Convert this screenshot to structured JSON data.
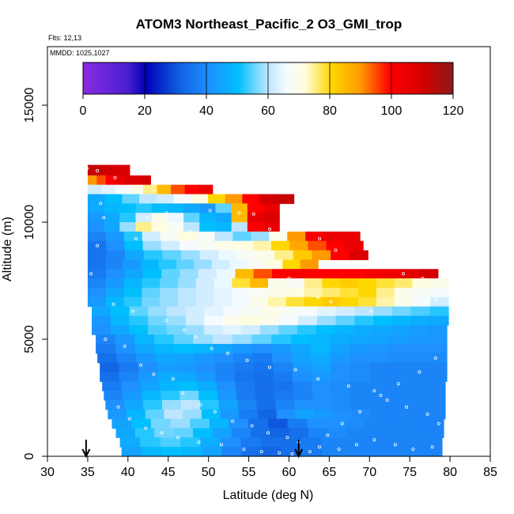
{
  "chart_data": {
    "type": "heatmap",
    "title": "ATOM3 Northeast_Pacific_2 O3_GMI_trop",
    "flights_label": "Flts: 12,13",
    "dates_label": "MMDD: 1025,1027",
    "xlabel": "Latitude (deg N)",
    "ylabel": "Altitude (m)",
    "xlim": [
      30,
      85
    ],
    "ylim": [
      0,
      17500
    ],
    "xticks": [
      "30",
      "35",
      "40",
      "45",
      "50",
      "55",
      "60",
      "65",
      "70",
      "75",
      "80",
      "85"
    ],
    "yticks": [
      "0",
      "5000",
      "10000",
      "15000"
    ],
    "colorbar": {
      "range": [
        0,
        120
      ],
      "ticks": [
        "0",
        "20",
        "40",
        "60",
        "80",
        "100",
        "120"
      ]
    },
    "arrows_latitude": [
      34.8,
      61.2
    ],
    "colors": {
      "low": "#8a2be2",
      "mid": "#1e90ff",
      "light": "#e0f0ff",
      "high_yellow": "#ffd700",
      "high_red": "#ff0000",
      "max": "#8b1a1a"
    },
    "layers": [
      {
        "alt_bottom": 12000,
        "alt_top": 12450,
        "lat_start": 35.0,
        "lat_end": 40.2,
        "values": [
          112,
          112,
          111,
          110,
          109,
          108
        ]
      },
      {
        "alt_bottom": 11600,
        "alt_top": 12000,
        "lat_start": 35.0,
        "lat_end": 42.8,
        "values": [
          90,
          95,
          100,
          105,
          108,
          108,
          110
        ]
      },
      {
        "alt_bottom": 11200,
        "alt_top": 11600,
        "lat_start": 35.0,
        "lat_end": 50.5,
        "values": [
          62,
          64,
          66,
          70,
          75,
          85,
          95,
          100,
          105
        ]
      },
      {
        "alt_bottom": 10800,
        "alt_top": 11200,
        "lat_start": 35.0,
        "lat_end": 60.6,
        "values": [
          45,
          50,
          55,
          60,
          62,
          66,
          72,
          80,
          90,
          100,
          110,
          112
        ]
      },
      {
        "alt_bottom": 10400,
        "alt_top": 10800,
        "lat_start": 35.0,
        "lat_end": 58.8,
        "values": [
          45,
          48,
          50,
          52,
          50,
          48,
          45,
          42,
          55,
          85,
          100,
          105
        ]
      },
      {
        "alt_bottom": 10000,
        "alt_top": 10400,
        "lat_start": 35.0,
        "lat_end": 58.8,
        "values": [
          42,
          45,
          52,
          62,
          70,
          65,
          55,
          48,
          45,
          85,
          105,
          108
        ]
      },
      {
        "alt_bottom": 9600,
        "alt_top": 10000,
        "lat_start": 35.0,
        "lat_end": 58.8,
        "values": [
          40,
          45,
          58,
          75,
          72,
          68,
          60,
          50,
          48,
          60,
          100,
          105
        ]
      },
      {
        "alt_bottom": 9200,
        "alt_top": 9600,
        "lat_start": 35.0,
        "lat_end": 68.8,
        "values": [
          38,
          42,
          52,
          62,
          68,
          72,
          68,
          60,
          55,
          58,
          70,
          90,
          102,
          105,
          105
        ]
      },
      {
        "alt_bottom": 8800,
        "alt_top": 9200,
        "lat_start": 35.0,
        "lat_end": 69.2,
        "values": [
          35,
          40,
          50,
          58,
          62,
          66,
          68,
          70,
          72,
          74,
          80,
          88,
          95,
          100,
          105
        ]
      },
      {
        "alt_bottom": 8400,
        "alt_top": 8800,
        "lat_start": 35.0,
        "lat_end": 69.8,
        "values": [
          35,
          38,
          45,
          52,
          55,
          58,
          62,
          65,
          68,
          70,
          75,
          82,
          90,
          100,
          108
        ]
      },
      {
        "alt_bottom": 8000,
        "alt_top": 8400,
        "lat_start": 35.0,
        "lat_end": 63.6,
        "values": [
          35,
          38,
          42,
          48,
          52,
          55,
          58,
          62,
          65,
          68,
          72,
          80,
          90
        ]
      },
      {
        "alt_bottom": 7600,
        "alt_top": 8000,
        "lat_start": 35.0,
        "lat_end": 78.5,
        "values": [
          36,
          40,
          45,
          50,
          55,
          58,
          62,
          65,
          85,
          95,
          100,
          102,
          100,
          100,
          100,
          102,
          104,
          106,
          110
        ]
      },
      {
        "alt_bottom": 7200,
        "alt_top": 7600,
        "lat_start": 35.0,
        "lat_end": 79.8,
        "values": [
          38,
          42,
          48,
          52,
          55,
          58,
          62,
          65,
          78,
          85,
          70,
          68,
          75,
          80,
          82,
          80,
          78,
          76,
          72,
          70
        ]
      },
      {
        "alt_bottom": 6800,
        "alt_top": 7200,
        "lat_start": 35.0,
        "lat_end": 79.8,
        "values": [
          40,
          45,
          50,
          55,
          58,
          60,
          62,
          64,
          66,
          68,
          70,
          72,
          74,
          76,
          78,
          80,
          75,
          70,
          68,
          66
        ]
      },
      {
        "alt_bottom": 6400,
        "alt_top": 6800,
        "lat_start": 35.0,
        "lat_end": 79.8,
        "values": [
          42,
          48,
          52,
          56,
          58,
          60,
          62,
          64,
          66,
          70,
          74,
          78,
          80,
          82,
          80,
          78,
          74,
          70,
          66,
          62
        ]
      },
      {
        "alt_bottom": 6000,
        "alt_top": 6400,
        "lat_start": 35.5,
        "lat_end": 79.8,
        "values": [
          45,
          50,
          55,
          58,
          60,
          62,
          64,
          66,
          68,
          70,
          68,
          66,
          64,
          62,
          60,
          58,
          56,
          54,
          52
        ]
      },
      {
        "alt_bottom": 5600,
        "alt_top": 6000,
        "lat_start": 35.5,
        "lat_end": 79.8,
        "values": [
          42,
          48,
          52,
          56,
          58,
          62,
          66,
          70,
          72,
          70,
          66,
          62,
          58,
          55,
          52,
          50,
          48,
          46,
          45
        ]
      },
      {
        "alt_bottom": 5200,
        "alt_top": 5600,
        "lat_start": 35.5,
        "lat_end": 79.6,
        "values": [
          40,
          45,
          50,
          54,
          56,
          58,
          62,
          64,
          62,
          58,
          55,
          52,
          50,
          48,
          46,
          45,
          44,
          43,
          42
        ]
      },
      {
        "alt_bottom": 4800,
        "alt_top": 5200,
        "lat_start": 36.0,
        "lat_end": 79.6,
        "values": [
          38,
          42,
          48,
          52,
          55,
          58,
          60,
          58,
          55,
          52,
          50,
          48,
          46,
          45,
          44,
          43,
          42,
          41
        ]
      },
      {
        "alt_bottom": 4400,
        "alt_top": 4800,
        "lat_start": 36.0,
        "lat_end": 79.6,
        "values": [
          36,
          40,
          45,
          48,
          50,
          48,
          45,
          42,
          40,
          42,
          45,
          48,
          44,
          42,
          41,
          40,
          40,
          40
        ]
      },
      {
        "alt_bottom": 4000,
        "alt_top": 4400,
        "lat_start": 36.2,
        "lat_end": 79.6,
        "values": [
          34,
          38,
          42,
          45,
          44,
          42,
          40,
          38,
          36,
          40,
          44,
          46,
          42,
          40,
          40,
          39,
          39,
          39
        ]
      },
      {
        "alt_bottom": 3600,
        "alt_top": 4000,
        "lat_start": 36.5,
        "lat_end": 79.6,
        "values": [
          32,
          36,
          40,
          43,
          42,
          40,
          38,
          36,
          35,
          38,
          42,
          44,
          40,
          39,
          38,
          38,
          38,
          38
        ]
      },
      {
        "alt_bottom": 3200,
        "alt_top": 3600,
        "lat_start": 36.5,
        "lat_end": 79.6,
        "values": [
          34,
          38,
          42,
          46,
          45,
          42,
          38,
          35,
          34,
          36,
          40,
          42,
          40,
          39,
          38,
          38,
          38,
          38
        ]
      },
      {
        "alt_bottom": 2800,
        "alt_top": 3200,
        "lat_start": 36.8,
        "lat_end": 79.4,
        "values": [
          36,
          40,
          44,
          48,
          50,
          46,
          40,
          36,
          34,
          35,
          38,
          40,
          39,
          38,
          38,
          38,
          38,
          38
        ]
      },
      {
        "alt_bottom": 2400,
        "alt_top": 2800,
        "lat_start": 37.0,
        "lat_end": 79.4,
        "values": [
          38,
          42,
          48,
          52,
          56,
          50,
          42,
          36,
          34,
          36,
          38,
          40,
          39,
          38,
          38,
          38,
          38,
          38
        ]
      },
      {
        "alt_bottom": 2000,
        "alt_top": 2400,
        "lat_start": 37.2,
        "lat_end": 79.4,
        "values": [
          40,
          45,
          52,
          58,
          60,
          52,
          44,
          38,
          34,
          38,
          40,
          40,
          39,
          38,
          38,
          38,
          38,
          38
        ]
      },
      {
        "alt_bottom": 1600,
        "alt_top": 2000,
        "lat_start": 37.5,
        "lat_end": 79.4,
        "values": [
          42,
          48,
          55,
          60,
          58,
          50,
          42,
          36,
          32,
          40,
          44,
          42,
          40,
          39,
          38,
          38,
          38,
          38
        ]
      },
      {
        "alt_bottom": 1200,
        "alt_top": 1600,
        "lat_start": 38.0,
        "lat_end": 79.2,
        "values": [
          44,
          50,
          56,
          58,
          54,
          48,
          40,
          34,
          30,
          36,
          40,
          40,
          39,
          38,
          38,
          38,
          38
        ]
      },
      {
        "alt_bottom": 800,
        "alt_top": 1200,
        "lat_start": 38.5,
        "lat_end": 79.2,
        "values": [
          45,
          52,
          56,
          55,
          50,
          44,
          38,
          34,
          32,
          34,
          38,
          39,
          38,
          38,
          38,
          38,
          38
        ]
      },
      {
        "alt_bottom": 400,
        "alt_top": 800,
        "lat_start": 39.0,
        "lat_end": 79.0,
        "values": [
          46,
          52,
          54,
          52,
          46,
          40,
          36,
          34,
          34,
          36,
          38,
          38,
          38,
          38,
          38,
          38
        ]
      },
      {
        "alt_bottom": 0,
        "alt_top": 400,
        "lat_start": 39.2,
        "lat_end": 79.0,
        "values": [
          44,
          48,
          50,
          48,
          44,
          38,
          34,
          32,
          34,
          36,
          38,
          38,
          38,
          38,
          38,
          38
        ]
      }
    ],
    "samples": [
      [
        34.9,
        12300
      ],
      [
        36.2,
        12200
      ],
      [
        38.4,
        11900
      ],
      [
        36.6,
        10800
      ],
      [
        37.0,
        10200
      ],
      [
        42.4,
        10200
      ],
      [
        44.8,
        10400
      ],
      [
        50.2,
        10500
      ],
      [
        53.8,
        10400
      ],
      [
        55.6,
        10350
      ],
      [
        57.6,
        9700
      ],
      [
        63.8,
        9300
      ],
      [
        65.8,
        8800
      ],
      [
        71.0,
        8300
      ],
      [
        74.2,
        7800
      ],
      [
        76.6,
        7600
      ],
      [
        36.2,
        9000
      ],
      [
        41.0,
        9300
      ],
      [
        44.2,
        9900
      ],
      [
        47.8,
        9600
      ],
      [
        53.6,
        8800
      ],
      [
        60.0,
        7600
      ],
      [
        61.3,
        7200
      ],
      [
        63.6,
        6800
      ],
      [
        65.2,
        6600
      ],
      [
        70.2,
        6200
      ],
      [
        75.8,
        6500
      ],
      [
        78.2,
        6700
      ],
      [
        35.4,
        7800
      ],
      [
        38.2,
        6500
      ],
      [
        40.6,
        6200
      ],
      [
        44.8,
        5800
      ],
      [
        47.0,
        5400
      ],
      [
        48.4,
        5100
      ],
      [
        50.4,
        4600
      ],
      [
        52.4,
        4400
      ],
      [
        54.8,
        4100
      ],
      [
        57.6,
        3800
      ],
      [
        60.8,
        3700
      ],
      [
        63.6,
        3300
      ],
      [
        67.4,
        3000
      ],
      [
        70.6,
        2800
      ],
      [
        72.2,
        2400
      ],
      [
        74.6,
        2100
      ],
      [
        77.2,
        1800
      ],
      [
        78.6,
        1400
      ],
      [
        37.2,
        5000
      ],
      [
        39.6,
        4700
      ],
      [
        41.6,
        3900
      ],
      [
        43.2,
        3500
      ],
      [
        45.6,
        3300
      ],
      [
        46.8,
        2700
      ],
      [
        49.0,
        2200
      ],
      [
        50.8,
        1900
      ],
      [
        53.0,
        1500
      ],
      [
        55.4,
        1300
      ],
      [
        57.4,
        1000
      ],
      [
        59.8,
        800
      ],
      [
        61.2,
        600
      ],
      [
        63.8,
        400
      ],
      [
        66.2,
        300
      ],
      [
        68.4,
        500
      ],
      [
        70.6,
        700
      ],
      [
        73.2,
        500
      ],
      [
        75.4,
        300
      ],
      [
        77.8,
        400
      ],
      [
        38.8,
        2100
      ],
      [
        40.2,
        1600
      ],
      [
        42.2,
        1200
      ],
      [
        44.2,
        1000
      ],
      [
        46.2,
        800
      ],
      [
        48.8,
        600
      ],
      [
        51.6,
        500
      ],
      [
        54.4,
        300
      ],
      [
        56.6,
        200
      ],
      [
        58.8,
        150
      ],
      [
        60.4,
        100
      ],
      [
        62.6,
        200
      ],
      [
        64.8,
        900
      ],
      [
        66.6,
        1400
      ],
      [
        68.8,
        1900
      ],
      [
        71.4,
        2600
      ],
      [
        73.6,
        3100
      ],
      [
        76.2,
        3600
      ],
      [
        78.2,
        4200
      ]
    ]
  }
}
